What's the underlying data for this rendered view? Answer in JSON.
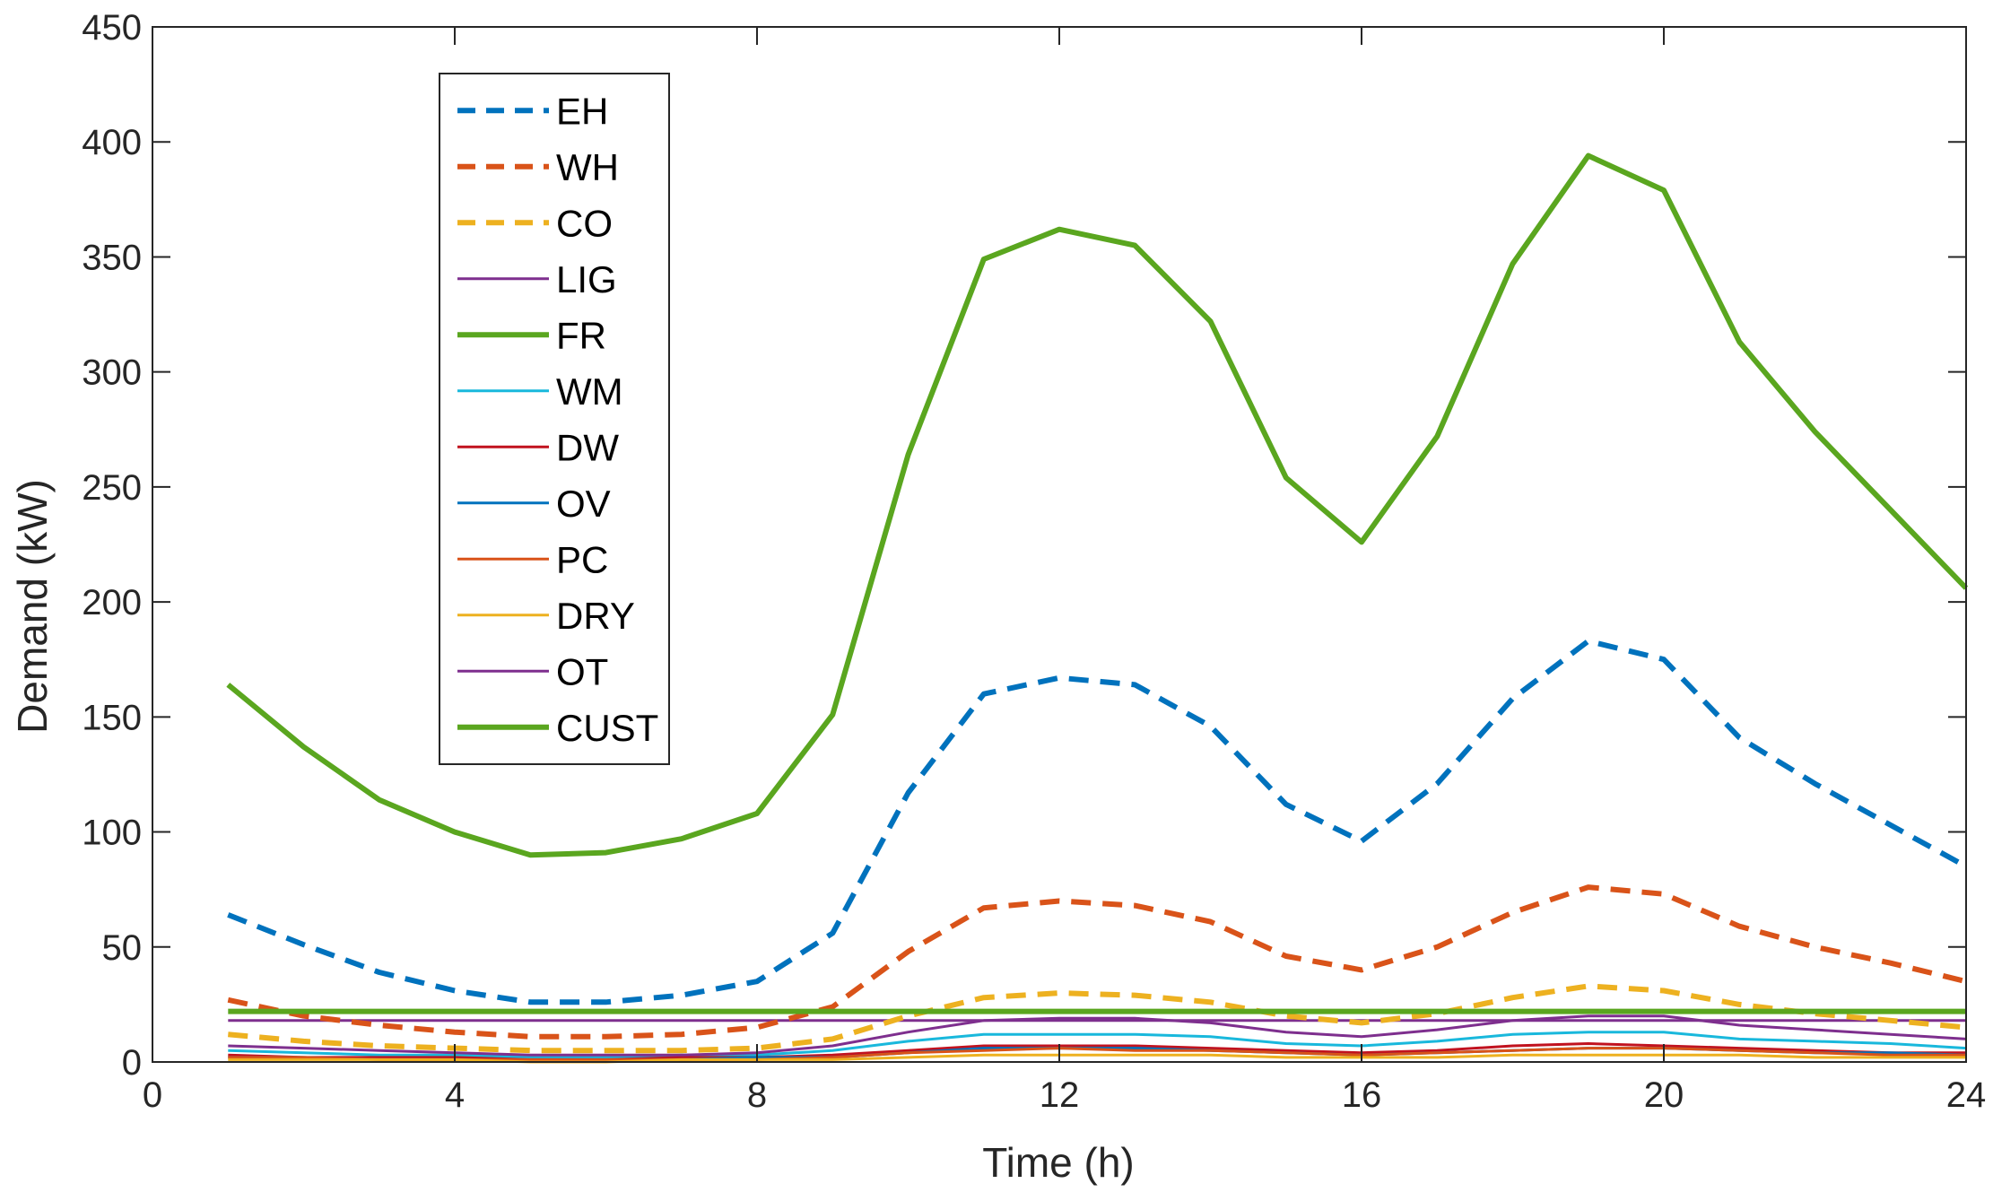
{
  "chart_data": {
    "type": "line",
    "title": "",
    "xlabel": "Time (h)",
    "ylabel": "Demand (kW)",
    "xlim": [
      0,
      24
    ],
    "ylim": [
      0,
      450
    ],
    "xticks": [
      "0",
      "4",
      "8",
      "12",
      "16",
      "20",
      "24"
    ],
    "yticks": [
      "0",
      "50",
      "100",
      "150",
      "200",
      "250",
      "300",
      "350",
      "400",
      "450"
    ],
    "grid": false,
    "legend_position": "top-left",
    "x": [
      1,
      2,
      3,
      4,
      5,
      6,
      7,
      8,
      9,
      10,
      11,
      12,
      13,
      14,
      15,
      16,
      17,
      18,
      19,
      20,
      21,
      22,
      23,
      24
    ],
    "series": [
      {
        "name": "EH",
        "color": "#0072BD",
        "style": "dashed",
        "width": "thick",
        "values": [
          64,
          51,
          39,
          31,
          26,
          26,
          29,
          35,
          56,
          117,
          160,
          167,
          164,
          146,
          112,
          96,
          121,
          158,
          183,
          175,
          141,
          121,
          103,
          85
        ]
      },
      {
        "name": "WH",
        "color": "#D95319",
        "style": "dashed",
        "width": "thick",
        "values": [
          27,
          20,
          16,
          13,
          11,
          11,
          12,
          15,
          24,
          48,
          67,
          70,
          68,
          61,
          46,
          40,
          50,
          65,
          76,
          73,
          59,
          50,
          43,
          35
        ]
      },
      {
        "name": "CO",
        "color": "#EDB120",
        "style": "dashed",
        "width": "thick",
        "values": [
          12,
          9,
          7,
          6,
          5,
          5,
          5,
          6,
          10,
          20,
          28,
          30,
          29,
          26,
          20,
          17,
          21,
          28,
          33,
          31,
          25,
          21,
          18,
          15
        ]
      },
      {
        "name": "LIG",
        "color": "#7E2F8E",
        "style": "solid",
        "width": "thin",
        "values": [
          18,
          18,
          18,
          18,
          18,
          18,
          18,
          18,
          18,
          18,
          18,
          18,
          18,
          18,
          18,
          18,
          18,
          18,
          18,
          18,
          18,
          18,
          18,
          18
        ]
      },
      {
        "name": "FR",
        "color": "#5AA61F",
        "style": "solid",
        "width": "thick",
        "values": [
          22,
          22,
          22,
          22,
          22,
          22,
          22,
          22,
          22,
          22,
          22,
          22,
          22,
          22,
          22,
          22,
          22,
          22,
          22,
          22,
          22,
          22,
          22,
          22
        ]
      },
      {
        "name": "WM",
        "color": "#19B8DC",
        "style": "solid",
        "width": "thin",
        "values": [
          5,
          4,
          3,
          3,
          2,
          2,
          3,
          3,
          5,
          9,
          12,
          12,
          12,
          11,
          8,
          7,
          9,
          12,
          13,
          13,
          10,
          9,
          8,
          6
        ]
      },
      {
        "name": "DW",
        "color": "#C1121F",
        "style": "solid",
        "width": "thin",
        "values": [
          3,
          2,
          2,
          2,
          1,
          1,
          2,
          2,
          3,
          5,
          7,
          7,
          7,
          6,
          5,
          4,
          5,
          7,
          8,
          7,
          6,
          5,
          4,
          4
        ]
      },
      {
        "name": "OV",
        "color": "#0072BD",
        "style": "solid",
        "width": "thin",
        "values": [
          2,
          2,
          1,
          1,
          1,
          1,
          1,
          2,
          2,
          4,
          6,
          6,
          6,
          5,
          4,
          3,
          4,
          5,
          6,
          6,
          5,
          4,
          4,
          3
        ]
      },
      {
        "name": "PC",
        "color": "#D95319",
        "style": "solid",
        "width": "thin",
        "values": [
          2,
          2,
          1,
          1,
          1,
          1,
          1,
          1,
          2,
          4,
          5,
          6,
          5,
          5,
          4,
          3,
          4,
          5,
          6,
          6,
          5,
          4,
          3,
          3
        ]
      },
      {
        "name": "DRY",
        "color": "#EDB120",
        "style": "solid",
        "width": "thin",
        "values": [
          1,
          1,
          1,
          1,
          0,
          0,
          1,
          1,
          1,
          2,
          3,
          3,
          3,
          3,
          2,
          2,
          2,
          3,
          3,
          3,
          3,
          2,
          2,
          2
        ]
      },
      {
        "name": "OT",
        "color": "#7E2F8E",
        "style": "solid",
        "width": "thin",
        "values": [
          7,
          6,
          5,
          4,
          3,
          3,
          3,
          4,
          7,
          13,
          18,
          19,
          19,
          17,
          13,
          11,
          14,
          18,
          20,
          20,
          16,
          14,
          12,
          10
        ]
      },
      {
        "name": "CUST",
        "color": "#5AA61F",
        "style": "solid",
        "width": "thick",
        "values": [
          164,
          137,
          114,
          100,
          90,
          91,
          97,
          108,
          151,
          264,
          349,
          362,
          355,
          322,
          254,
          226,
          272,
          347,
          394,
          379,
          313,
          274,
          240,
          206
        ]
      }
    ]
  }
}
